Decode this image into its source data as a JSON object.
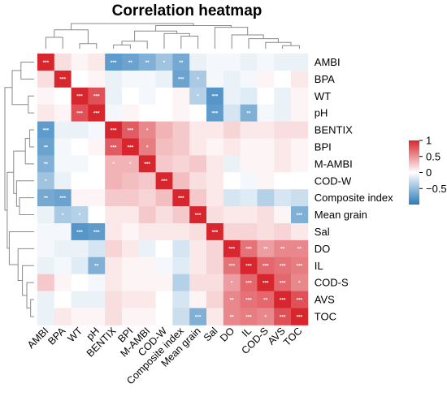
{
  "chart_data": {
    "type": "heatmap",
    "title": "Correlation heatmap",
    "rows": [
      "AMBI",
      "BPA",
      "WT",
      "pH",
      "BENTIX",
      "BPI",
      "M-AMBI",
      "COD-W",
      "Composite index",
      "Mean grain",
      "Sal",
      "DO",
      "IL",
      "COD-S",
      "AVS",
      "TOC"
    ],
    "cols": [
      "AMBI",
      "BPA",
      "WT",
      "pH",
      "BENTIX",
      "BPI",
      "M-AMBI",
      "COD-W",
      "Composite index",
      "Mean grain",
      "Sal",
      "DO",
      "IL",
      "COD-S",
      "AVS",
      "TOC"
    ],
    "values": [
      [
        1.0,
        0.15,
        0.05,
        0.1,
        -0.75,
        -0.7,
        -0.6,
        -0.45,
        -0.65,
        -0.1,
        -0.05,
        -0.05,
        -0.1,
        -0.05,
        -0.1,
        -0.1
      ],
      [
        0.15,
        1.0,
        0.0,
        0.05,
        -0.1,
        -0.05,
        -0.05,
        -0.1,
        -0.7,
        -0.4,
        -0.05,
        -0.1,
        -0.05,
        0.05,
        0.0,
        0.1
      ],
      [
        0.05,
        0.0,
        1.0,
        0.8,
        -0.1,
        0.0,
        -0.05,
        0.0,
        0.05,
        -0.35,
        -0.8,
        -0.1,
        -0.15,
        0.0,
        -0.1,
        0.05
      ],
      [
        0.1,
        0.05,
        0.8,
        1.0,
        -0.05,
        0.05,
        0.0,
        0.0,
        0.05,
        0.0,
        -0.75,
        -0.2,
        -0.6,
        -0.05,
        -0.1,
        0.05
      ],
      [
        -0.75,
        -0.1,
        -0.1,
        -0.05,
        1.0,
        0.75,
        0.55,
        0.35,
        0.25,
        0.1,
        0.1,
        0.2,
        0.1,
        0.1,
        0.15,
        0.15
      ],
      [
        -0.7,
        -0.05,
        0.0,
        0.05,
        0.75,
        1.0,
        0.6,
        0.3,
        0.25,
        0.1,
        0.05,
        0.1,
        0.05,
        0.05,
        0.1,
        0.05
      ],
      [
        -0.6,
        -0.05,
        -0.05,
        0.0,
        0.35,
        0.35,
        1.0,
        0.25,
        0.2,
        0.25,
        0.1,
        -0.1,
        0.05,
        0.05,
        0.1,
        0.05
      ],
      [
        -0.45,
        -0.1,
        0.0,
        0.0,
        0.35,
        0.3,
        0.25,
        1.0,
        0.3,
        0.15,
        0.1,
        0.0,
        -0.05,
        0.05,
        0.0,
        0.0
      ],
      [
        -0.65,
        -0.7,
        0.05,
        0.05,
        0.25,
        0.25,
        0.2,
        0.3,
        1.0,
        0.25,
        0.1,
        -0.2,
        -0.15,
        -0.35,
        -0.2,
        -0.25
      ],
      [
        -0.1,
        -0.4,
        -0.35,
        0.0,
        0.1,
        0.1,
        0.25,
        0.15,
        0.25,
        1.0,
        0.15,
        0.1,
        0.1,
        0.15,
        0.05,
        -0.6
      ],
      [
        -0.05,
        -0.05,
        -0.8,
        -0.75,
        0.1,
        0.05,
        0.1,
        0.1,
        0.1,
        0.15,
        1.0,
        0.2,
        0.2,
        0.15,
        0.2,
        0.1
      ],
      [
        -0.05,
        -0.1,
        -0.1,
        -0.2,
        0.2,
        0.1,
        -0.1,
        0.0,
        -0.2,
        0.1,
        0.2,
        1.0,
        0.65,
        0.45,
        0.55,
        0.55
      ],
      [
        -0.1,
        -0.05,
        -0.15,
        -0.6,
        0.1,
        0.05,
        0.05,
        -0.05,
        -0.15,
        0.1,
        0.2,
        0.65,
        1.0,
        0.7,
        0.65,
        0.6
      ],
      [
        0.25,
        0.05,
        0.0,
        -0.05,
        0.1,
        0.05,
        0.05,
        0.05,
        -0.35,
        0.15,
        0.15,
        0.45,
        0.7,
        1.0,
        0.7,
        0.55
      ],
      [
        -0.1,
        0.0,
        -0.1,
        -0.1,
        0.15,
        0.1,
        0.1,
        0.0,
        -0.2,
        0.05,
        0.2,
        0.55,
        0.65,
        0.7,
        1.0,
        0.8
      ],
      [
        -0.1,
        0.1,
        0.05,
        0.05,
        0.15,
        0.05,
        0.05,
        0.0,
        -0.25,
        -0.6,
        0.1,
        0.55,
        0.6,
        0.55,
        0.8,
        1.0
      ]
    ],
    "stars": [
      [
        "***",
        "",
        "",
        "",
        "***",
        "**",
        "**",
        "*",
        "**",
        "",
        "",
        "",
        "",
        "",
        "",
        ""
      ],
      [
        "",
        "***",
        "",
        "",
        "",
        "",
        "",
        "",
        "***",
        "*",
        "",
        "",
        "",
        "",
        "",
        ""
      ],
      [
        "",
        "",
        "***",
        "***",
        "",
        "",
        "",
        "",
        "",
        "*",
        "***",
        "",
        "",
        "",
        "",
        ""
      ],
      [
        "",
        "",
        "***",
        "***",
        "",
        "",
        "",
        "",
        "",
        "",
        "***",
        "",
        "**",
        "",
        "",
        ""
      ],
      [
        "***",
        "",
        "",
        "",
        "***",
        "***",
        "*",
        "",
        "",
        "",
        "",
        "",
        "",
        "",
        "",
        ""
      ],
      [
        "**",
        "",
        "",
        "",
        "***",
        "***",
        "*",
        "",
        "",
        "",
        "",
        "",
        "",
        "",
        "",
        ""
      ],
      [
        "**",
        "",
        "",
        "",
        "*",
        "*",
        "***",
        "",
        "",
        "",
        "",
        "",
        "",
        "",
        "",
        ""
      ],
      [
        "*",
        "",
        "",
        "",
        "",
        "",
        "",
        "***",
        "",
        "",
        "",
        "",
        "",
        "",
        "",
        ""
      ],
      [
        "**",
        "***",
        "",
        "",
        "",
        "",
        "",
        "",
        "***",
        "",
        "",
        "",
        "",
        "",
        "",
        ""
      ],
      [
        "",
        "*",
        "*",
        "",
        "",
        "",
        "",
        "",
        "",
        "***",
        "",
        "",
        "",
        "",
        "",
        "***"
      ],
      [
        "",
        "",
        "***",
        "***",
        "",
        "",
        "",
        "",
        "",
        "",
        "***",
        "",
        "",
        "",
        "",
        ""
      ],
      [
        "",
        "",
        "",
        "",
        "",
        "",
        "",
        "",
        "",
        "",
        "",
        "***",
        "***",
        "**",
        "**",
        "**"
      ],
      [
        "",
        "",
        "",
        "**",
        "",
        "",
        "",
        "",
        "",
        "",
        "",
        "***",
        "***",
        "***",
        "***",
        "***"
      ],
      [
        "",
        "",
        "",
        "",
        "",
        "",
        "",
        "",
        "",
        "",
        "",
        "*",
        "***",
        "***",
        "***",
        "*"
      ],
      [
        "",
        "",
        "",
        "",
        "",
        "",
        "",
        "",
        "",
        "",
        "",
        "**",
        "***",
        "**",
        "***",
        "***"
      ],
      [
        "",
        "",
        "",
        "",
        "",
        "",
        "",
        "",
        "",
        "***",
        "",
        "**",
        "***",
        "*",
        "***",
        "***"
      ]
    ],
    "legend": {
      "ticks": [
        1,
        0.5,
        0,
        -0.5
      ],
      "tick_labels": [
        "1",
        "0.5",
        "0",
        "−0.5"
      ],
      "range": [
        -1,
        1
      ]
    },
    "colors": {
      "negative": "#2b7bb9",
      "neutral": "#ffffff",
      "positive": "#d7262d"
    }
  }
}
